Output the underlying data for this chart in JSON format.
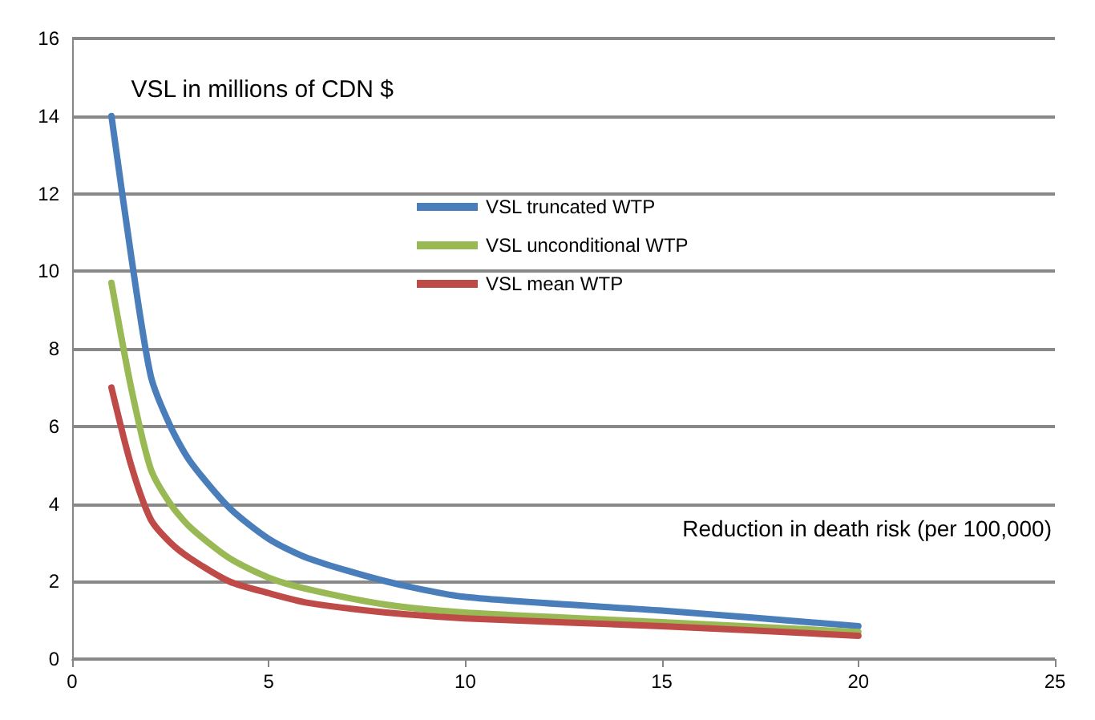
{
  "chart_data": {
    "type": "line",
    "xlabel": "Reduction in death risk (per 100,000)",
    "ylabel": "VSL in millions of CDN $",
    "xlim": [
      0,
      25
    ],
    "xticks": [
      0,
      5,
      10,
      15,
      20,
      25
    ],
    "ylim": [
      0,
      16
    ],
    "yticks": [
      0,
      2,
      4,
      6,
      8,
      10,
      12,
      14,
      16
    ],
    "grid": "y",
    "legend": "top",
    "marker": "none",
    "line_style": "solid",
    "x": [
      1,
      1.5,
      2,
      2.5,
      3,
      4,
      5,
      6,
      8,
      10,
      15,
      20
    ],
    "series": [
      {
        "name": "VSL truncated WTP",
        "color": "#4a7ebb",
        "values": [
          14,
          10.4,
          7.3,
          6,
          5.1,
          3.9,
          3.1,
          2.6,
          2.0,
          1.6,
          1.25,
          0.85
        ]
      },
      {
        "name": "VSL unconditional WTP",
        "color": "#98b954",
        "values": [
          9.7,
          7,
          4.9,
          4,
          3.4,
          2.6,
          2.1,
          1.8,
          1.4,
          1.2,
          0.95,
          0.7
        ]
      },
      {
        "name": "VSL mean WTP",
        "color": "#be4b48",
        "values": [
          7,
          5,
          3.6,
          3,
          2.6,
          2.0,
          1.7,
          1.45,
          1.2,
          1.05,
          0.85,
          0.6
        ]
      }
    ]
  }
}
